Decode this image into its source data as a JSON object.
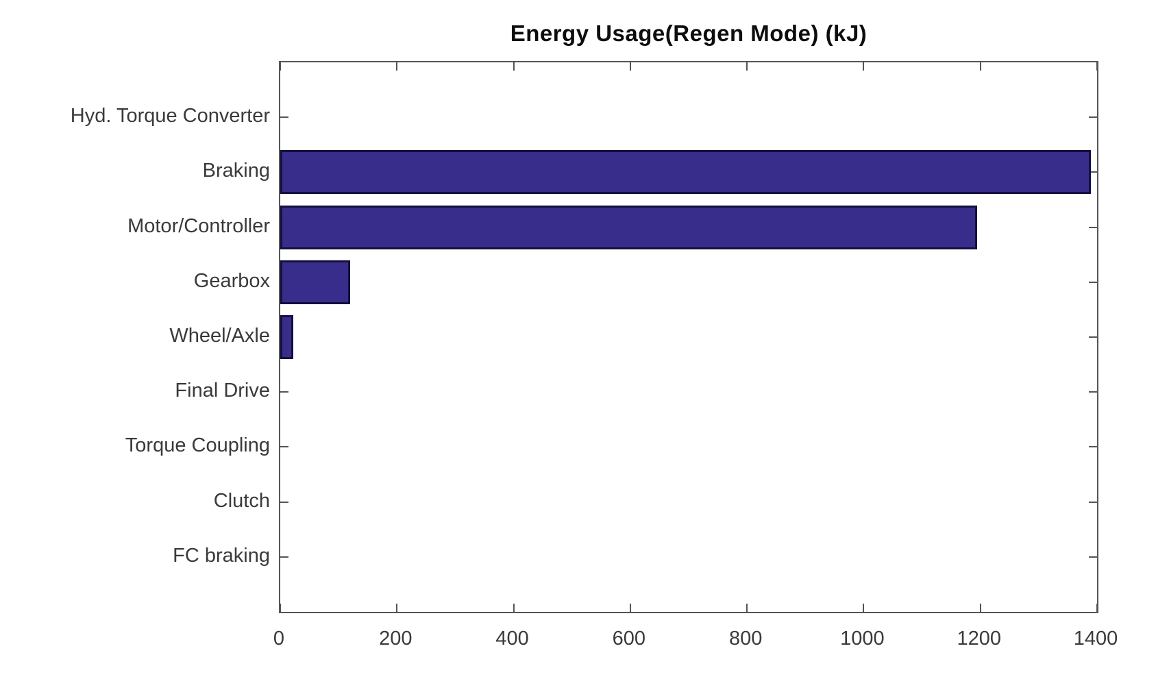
{
  "chart_data": {
    "type": "bar",
    "orientation": "horizontal",
    "title": "Energy Usage(Regen Mode) (kJ)",
    "categories": [
      "Hyd. Torque Converter",
      "Braking",
      "Motor/Controller",
      "Gearbox",
      "Wheel/Axle",
      "Final Drive",
      "Torque Coupling",
      "Clutch",
      "FC braking"
    ],
    "values": [
      0,
      1390,
      1195,
      120,
      22,
      0,
      0,
      0,
      0
    ],
    "xlim": [
      0,
      1400
    ],
    "x_ticks": [
      "0",
      "200",
      "400",
      "600",
      "800",
      "1000",
      "1200",
      "1400"
    ],
    "grid": false,
    "legend_position": "none",
    "colors": {
      "bar_fill": "#392d8c",
      "bar_edge": "#12103f",
      "axis": "#555555",
      "tick_label": "#3a3a3a",
      "title": "#0d0d0d",
      "background": "#ffffff"
    }
  }
}
